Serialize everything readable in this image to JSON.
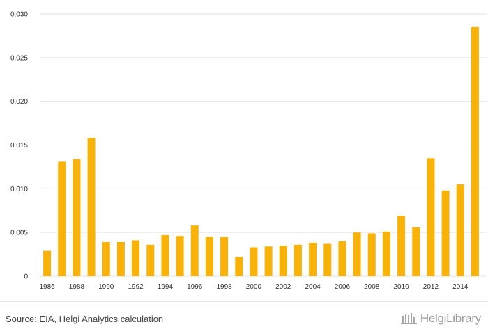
{
  "chart_data": {
    "type": "bar",
    "categories": [
      "1986",
      "1987",
      "1988",
      "1989",
      "1990",
      "1991",
      "1992",
      "1993",
      "1994",
      "1995",
      "1996",
      "1997",
      "1998",
      "1999",
      "2000",
      "2001",
      "2002",
      "2003",
      "2004",
      "2005",
      "2006",
      "2007",
      "2008",
      "2009",
      "2010",
      "2011",
      "2012",
      "2013",
      "2014",
      "2015"
    ],
    "values": [
      0.0029,
      0.0131,
      0.0134,
      0.0158,
      0.0039,
      0.0039,
      0.0041,
      0.0036,
      0.0047,
      0.0046,
      0.0058,
      0.0045,
      0.0045,
      0.0022,
      0.0033,
      0.0034,
      0.0035,
      0.0036,
      0.0038,
      0.0037,
      0.004,
      0.005,
      0.0049,
      0.0051,
      0.0069,
      0.0056,
      0.0135,
      0.0098,
      0.0105,
      0.0285
    ],
    "x_tick_labels": [
      "1986",
      "1988",
      "1990",
      "1992",
      "1994",
      "1996",
      "1998",
      "2000",
      "2002",
      "2004",
      "2006",
      "2008",
      "2010",
      "2012",
      "2014"
    ],
    "y_tick_labels": [
      "0",
      "0.005",
      "0.010",
      "0.015",
      "0.020",
      "0.025",
      "0.030"
    ],
    "ylim": [
      0,
      0.03
    ],
    "grid": true,
    "legend": "none",
    "bar_color": "#f9b208"
  },
  "footer": {
    "source": "Source: EIA, Helgi Analytics calculation",
    "logo_text": "HelgiLibrary",
    "logo_icon": "helgi-library-logo-icon"
  }
}
